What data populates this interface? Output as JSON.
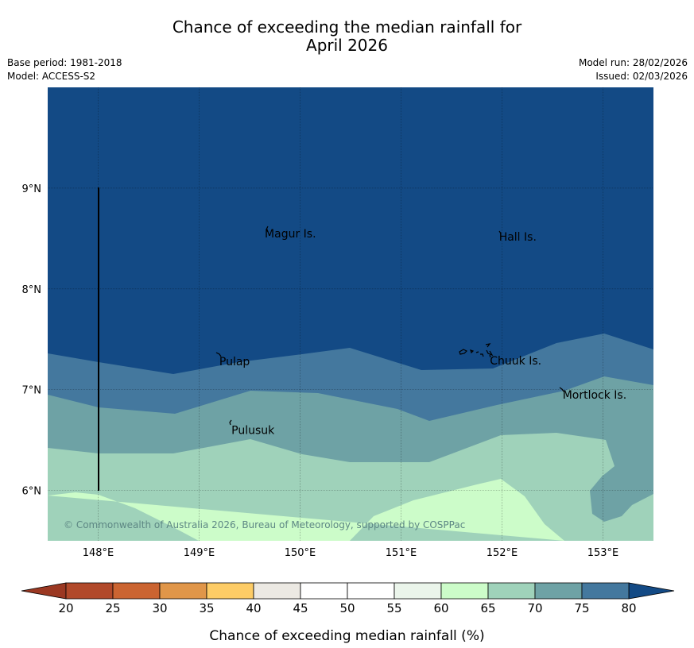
{
  "header": {
    "title_line1": "Chance of exceeding the median rainfall for",
    "title_line2": "April 2026",
    "base_period": "Base period: 1981-2018",
    "model": "Model: ACCESS-S2",
    "model_run": "Model run: 28/02/2026",
    "issued": "Issued: 02/03/2026"
  },
  "map": {
    "lon_range": [
      147.5,
      153.5
    ],
    "lat_range": [
      5.5,
      10.0
    ],
    "lon_ticks": [
      "148°E",
      "149°E",
      "150°E",
      "151°E",
      "152°E",
      "153°E"
    ],
    "lat_ticks": [
      "9°N",
      "8°N",
      "7°N",
      "6°N"
    ],
    "lon_tick_values": [
      148,
      149,
      150,
      151,
      152,
      153
    ],
    "lat_tick_values": [
      9,
      8,
      7,
      6
    ],
    "places": [
      {
        "name": "Magur Is.",
        "lon": 149.65,
        "lat": 8.55
      },
      {
        "name": "Hall Is.",
        "lon": 151.97,
        "lat": 8.52
      },
      {
        "name": "Pulap",
        "lon": 149.2,
        "lat": 7.28
      },
      {
        "name": "Chuuk Is.",
        "lon": 151.88,
        "lat": 7.29
      },
      {
        "name": "Mortlock Is.",
        "lon": 152.6,
        "lat": 6.95
      },
      {
        "name": "Pulusuk",
        "lon": 149.32,
        "lat": 6.6
      }
    ],
    "copyright": "© Commonwealth of Australia 2026, Bureau of Meteorology, supported by COSPPac"
  },
  "colorbar": {
    "ticks": [
      "20",
      "25",
      "30",
      "35",
      "40",
      "45",
      "50",
      "55",
      "60",
      "65",
      "70",
      "75",
      "80"
    ],
    "colors": [
      "#b1492a",
      "#cb6431",
      "#e09649",
      "#fdcc66",
      "#ece9e3",
      "#ffffff",
      "#ffffff",
      "#ebf5eb",
      "#ccfcc9",
      "#9fd2ba",
      "#6ea2a5",
      "#44789e",
      "#174b88"
    ],
    "under_color": "#9b3822",
    "over_color": "#134a85",
    "label": "Chance of exceeding median rainfall (%)"
  }
}
